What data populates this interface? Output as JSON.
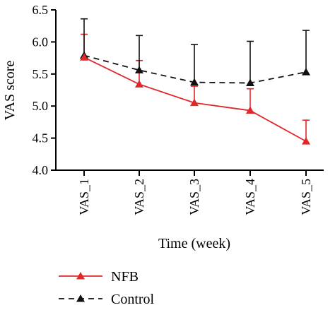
{
  "chart_data": {
    "type": "line",
    "title": "",
    "xlabel": "Time (week)",
    "ylabel": "VAS score",
    "categories": [
      "VAS_1",
      "VAS_2",
      "VAS_3",
      "VAS_4",
      "VAS_5"
    ],
    "ylim": [
      4.0,
      6.5
    ],
    "yticks": [
      "4.0",
      "4.5",
      "5.0",
      "5.5",
      "6.0",
      "6.5"
    ],
    "grid": false,
    "legend_position": "bottom-left",
    "series": [
      {
        "name": "NFB",
        "values": [
          5.76,
          5.34,
          5.05,
          4.93,
          4.45
        ],
        "error_upper": [
          6.12,
          5.71,
          5.31,
          5.27,
          4.78
        ],
        "color": "#e0282b",
        "line_style": "solid",
        "marker": "triangle"
      },
      {
        "name": "Control",
        "values": [
          5.79,
          5.56,
          5.37,
          5.36,
          5.53
        ],
        "error_upper": [
          6.36,
          6.1,
          5.96,
          6.01,
          6.18
        ],
        "color": "#111111",
        "line_style": "dashed",
        "marker": "triangle"
      }
    ]
  }
}
